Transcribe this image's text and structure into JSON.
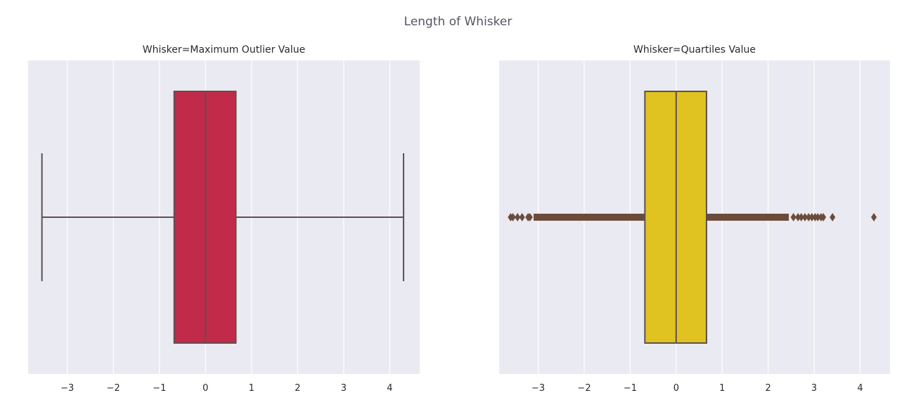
{
  "figure": {
    "title": "Length of Whisker"
  },
  "chart_data": [
    {
      "type": "box",
      "title": "Whisker=Maximum Outlier Value",
      "orientation": "horizontal",
      "xlim": [
        -3.85,
        4.65
      ],
      "xticks": [
        -3,
        -2,
        -1,
        0,
        1,
        2,
        3,
        4
      ],
      "xtick_labels": [
        "−3",
        "−2",
        "−1",
        "0",
        "1",
        "2",
        "3",
        "4"
      ],
      "grid": true,
      "box": {
        "q1": -0.68,
        "median": 0.0,
        "q3": 0.66,
        "whisker_low": -3.55,
        "whisker_high": 4.3
      },
      "outliers": [],
      "colors": {
        "box": "#c22a4a",
        "line": "#5f5050",
        "background": "#eaeaf2",
        "grid": "#ffffff"
      }
    },
    {
      "type": "box",
      "title": "Whisker=Quartiles Value",
      "orientation": "horizontal",
      "xlim": [
        -3.85,
        4.65
      ],
      "xticks": [
        -3,
        -2,
        -1,
        0,
        1,
        2,
        3,
        4
      ],
      "xtick_labels": [
        "−3",
        "−2",
        "−1",
        "0",
        "1",
        "2",
        "3",
        "4"
      ],
      "grid": true,
      "box": {
        "q1": -0.68,
        "median": 0.0,
        "q3": 0.66,
        "whisker_low": -0.68,
        "whisker_high": 0.66
      },
      "outlier_bands": [
        [
          -3.1,
          -0.68
        ],
        [
          0.66,
          2.45
        ]
      ],
      "outliers": [
        -3.6,
        -3.55,
        -3.45,
        -3.35,
        -3.22,
        -3.18,
        2.55,
        2.65,
        2.72,
        2.8,
        2.88,
        2.95,
        3.02,
        3.08,
        3.15,
        3.2,
        3.4,
        4.3
      ],
      "colors": {
        "box": "#e0c220",
        "line": "#5f5050",
        "outlier": "#6b4c3a",
        "background": "#eaeaf2",
        "grid": "#ffffff"
      }
    }
  ]
}
